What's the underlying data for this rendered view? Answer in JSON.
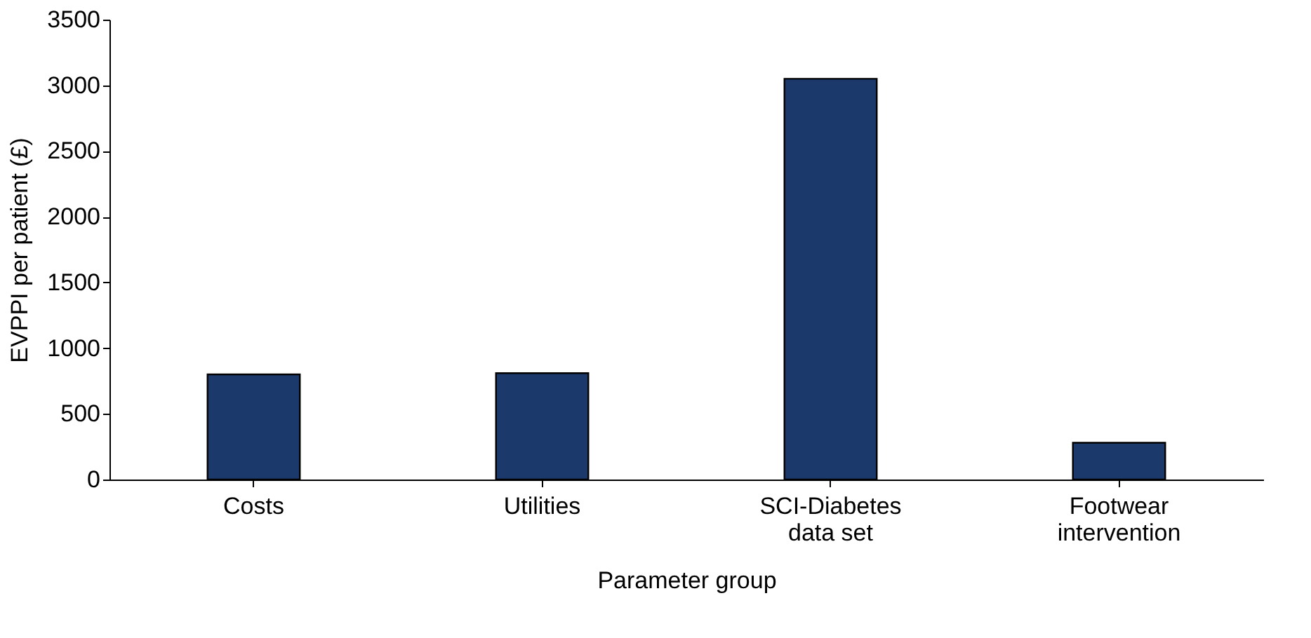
{
  "chart_data": {
    "type": "bar",
    "xlabel": "Parameter group",
    "ylabel": "EVPPI per patient (£)",
    "categories": [
      "Costs",
      "Utilities",
      "SCI-Diabetes\ndata set",
      "Footwear\nintervention"
    ],
    "values": [
      800,
      810,
      3050,
      280
    ],
    "color": "#1b3a6b",
    "ylim": [
      0,
      3500
    ],
    "yticks": [
      0,
      500,
      1000,
      1500,
      2000,
      2500,
      3000,
      3500
    ],
    "grid": false
  }
}
